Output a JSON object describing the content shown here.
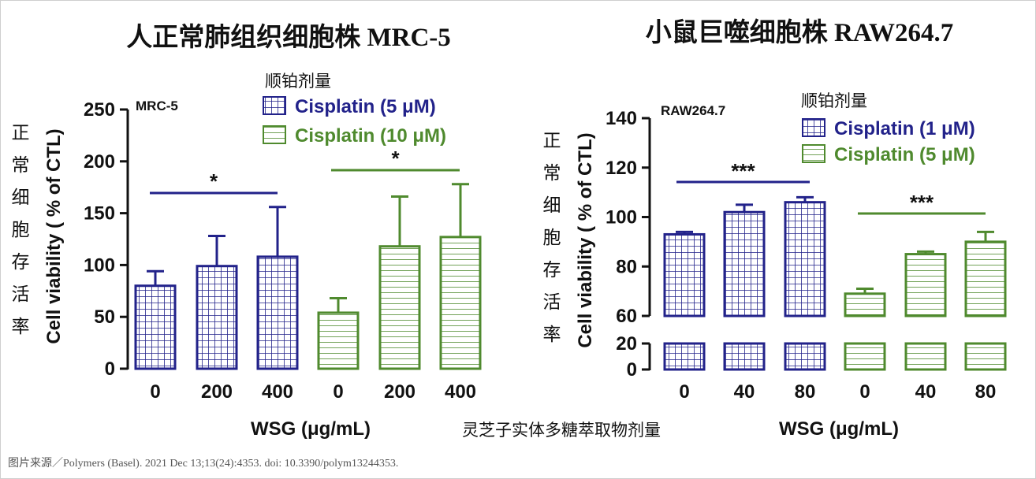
{
  "page": {
    "source": "图片来源／Polymers (Basel). 2021 Dec 13;13(24):4353. doi: 10.3390/polym13244353.",
    "center_label": "灵芝子实体多糖萃取物剂量"
  },
  "colors": {
    "series1": "#22228a",
    "series2": "#4f8a2e"
  },
  "chart_data": [
    {
      "type": "bar",
      "title": "人正常肺组织细胞株 MRC-5",
      "panel_label": "MRC-5",
      "legend_heading": "顺铂剂量",
      "side_label": "正常细胞存活率",
      "ylabel": "Cell viability ( % of CTL)",
      "xlabel": "WSG (μg/mL)",
      "ylim": [
        0,
        250
      ],
      "yticks": [
        0,
        50,
        100,
        150,
        200,
        250
      ],
      "series": [
        {
          "name": "Cisplatin (5 μM)",
          "pattern": "grid",
          "categories": [
            "0",
            "200",
            "400"
          ],
          "values": [
            80,
            99,
            108
          ],
          "errors": [
            14,
            29,
            48
          ],
          "significance": "*"
        },
        {
          "name": "Cisplatin (10 μM)",
          "pattern": "hlines",
          "categories": [
            "0",
            "200",
            "400"
          ],
          "values": [
            54,
            118,
            127
          ],
          "errors": [
            14,
            48,
            51
          ],
          "significance": "*"
        }
      ]
    },
    {
      "type": "bar",
      "title": "小鼠巨噬细胞株 RAW264.7",
      "panel_label": "RAW264.7",
      "legend_heading": "顺铂剂量",
      "side_label": "正常细胞存活率",
      "ylabel": "Cell viability ( % of CTL)",
      "xlabel": "WSG (μg/mL)",
      "ylim": [
        0,
        140
      ],
      "axis_break": [
        20,
        60
      ],
      "yticks": [
        0,
        20,
        60,
        80,
        100,
        120,
        140
      ],
      "series": [
        {
          "name": "Cisplatin (1 μM)",
          "pattern": "grid",
          "categories": [
            "0",
            "40",
            "80"
          ],
          "values": [
            93,
            102,
            106
          ],
          "errors": [
            1,
            3,
            2
          ],
          "significance": "***"
        },
        {
          "name": "Cisplatin (5 μM)",
          "pattern": "hlines",
          "categories": [
            "0",
            "40",
            "80"
          ],
          "values": [
            69,
            85,
            90
          ],
          "errors": [
            2,
            1,
            4
          ],
          "significance": "***"
        }
      ]
    }
  ]
}
